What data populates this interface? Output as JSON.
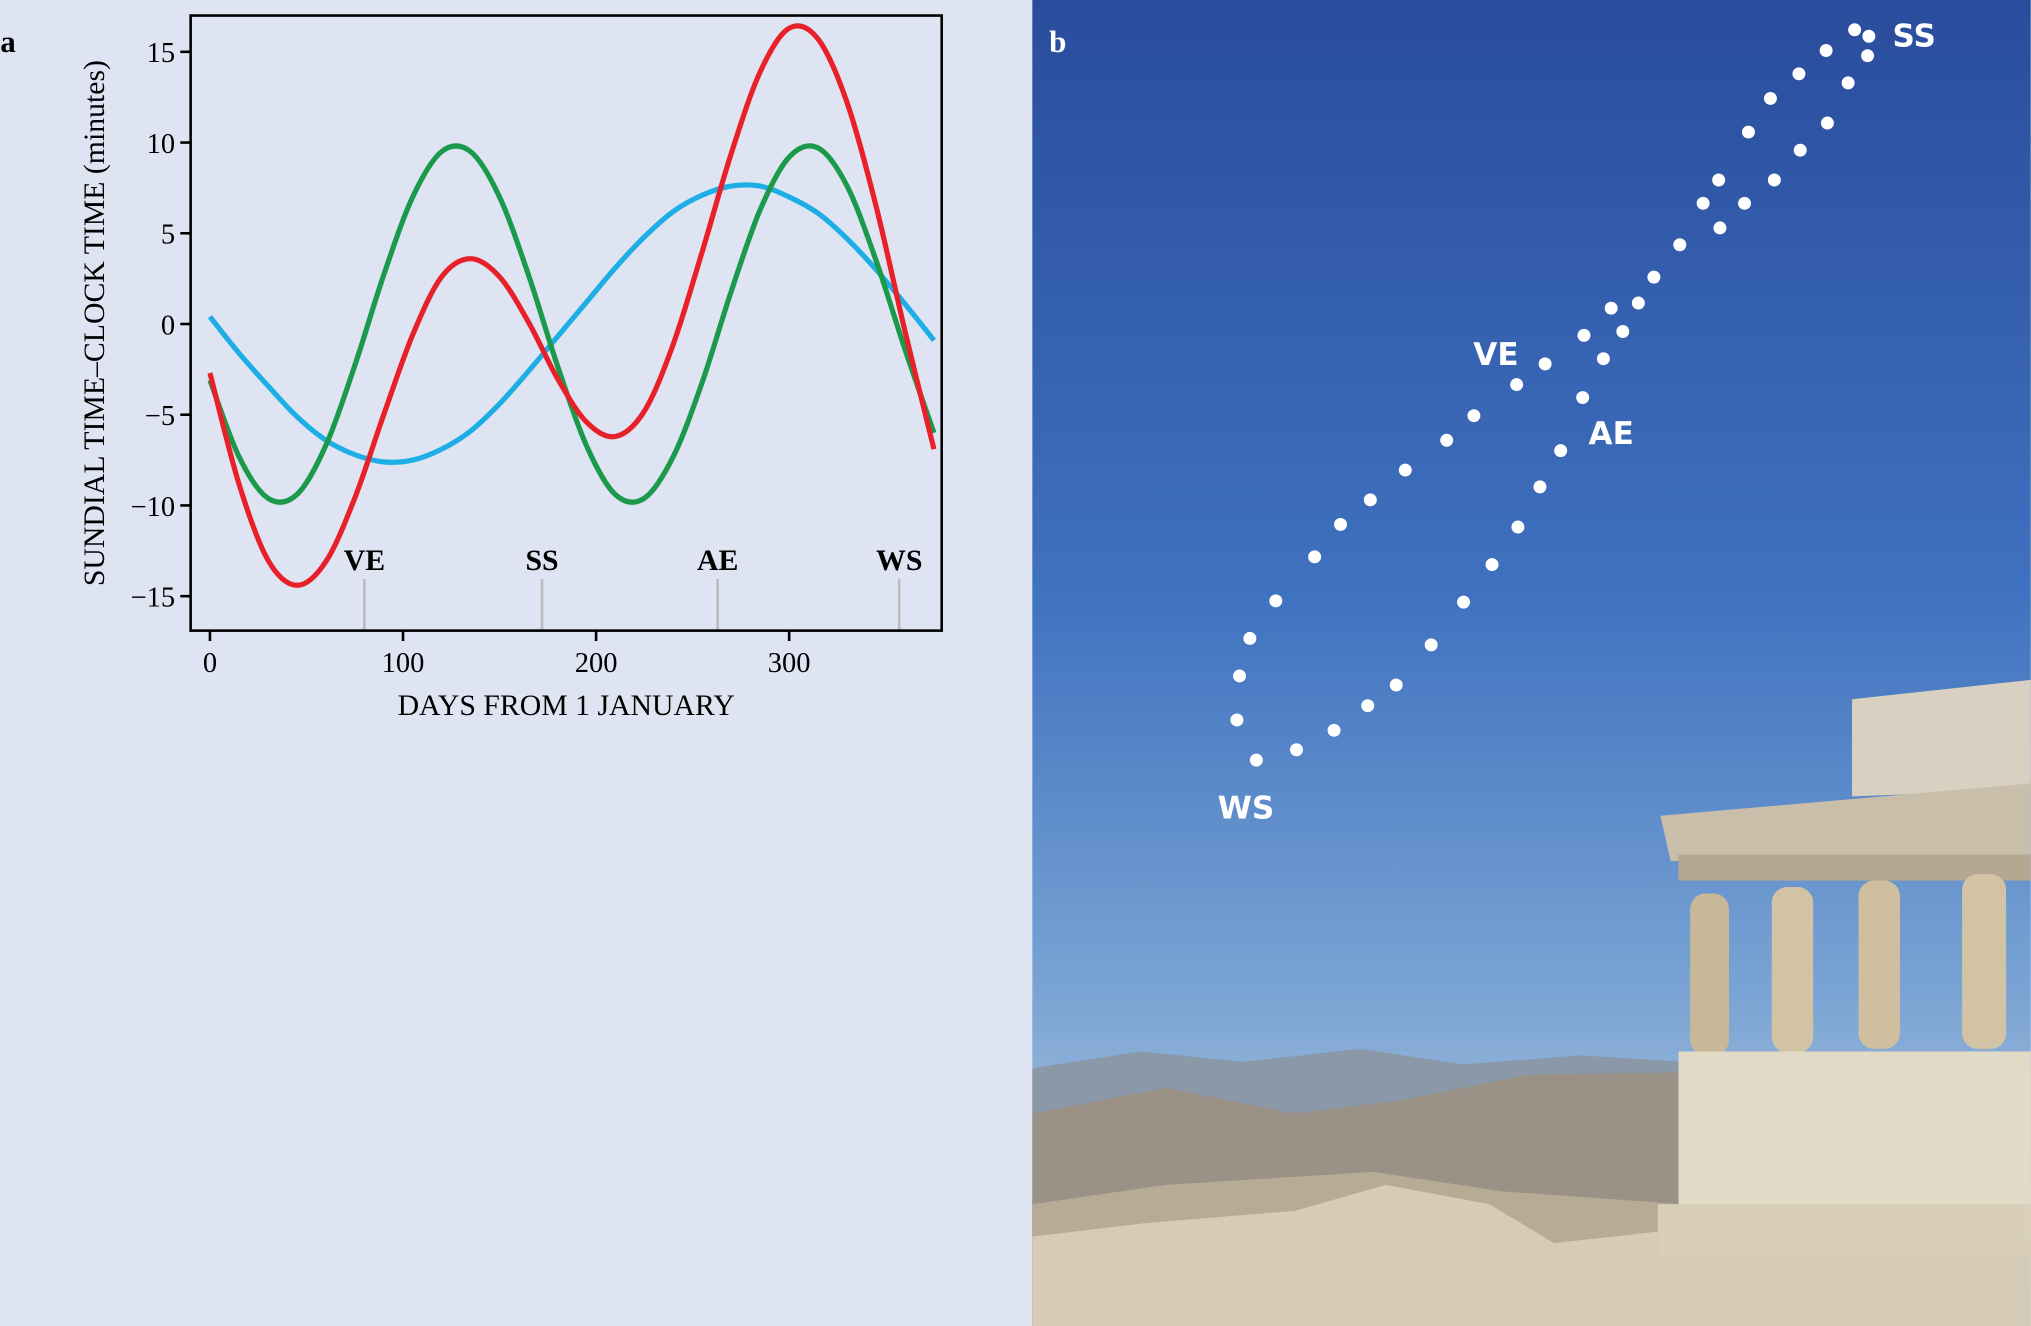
{
  "chart_data": {
    "type": "line",
    "panel_label": "a",
    "xlabel": "DAYS FROM 1 JANUARY",
    "ylabel": "SUNDIAL TIME–CLOCK TIME (minutes)",
    "x": [
      0,
      15,
      30,
      45,
      60,
      75,
      90,
      105,
      120,
      135,
      150,
      165,
      180,
      195,
      210,
      225,
      240,
      255,
      270,
      285,
      300,
      315,
      330,
      345,
      360,
      375
    ],
    "series": [
      {
        "color": "#e8202a",
        "values": [
          -2.7,
          -8.8,
          -13.0,
          -14.4,
          -13.1,
          -9.6,
          -5.0,
          -0.6,
          2.6,
          3.6,
          2.6,
          0.1,
          -3.0,
          -5.4,
          -6.2,
          -4.8,
          -1.1,
          4.0,
          9.4,
          13.9,
          16.3,
          15.7,
          12.2,
          6.5,
          -0.4,
          -6.9
        ]
      },
      {
        "color": "#1a9a4a",
        "values": [
          -3.1,
          -7.3,
          -9.6,
          -9.4,
          -6.7,
          -2.3,
          2.7,
          7.0,
          9.5,
          9.5,
          7.0,
          2.7,
          -2.3,
          -6.7,
          -9.4,
          -9.6,
          -7.3,
          -3.2,
          1.8,
          6.3,
          9.2,
          9.7,
          7.6,
          3.5,
          -1.4,
          -6.0
        ]
      },
      {
        "color": "#1eaee6",
        "values": [
          0.4,
          -1.6,
          -3.4,
          -5.1,
          -6.4,
          -7.2,
          -7.6,
          -7.5,
          -6.9,
          -5.9,
          -4.4,
          -2.6,
          -0.7,
          1.2,
          3.1,
          4.8,
          6.2,
          7.1,
          7.6,
          7.6,
          7.0,
          6.1,
          4.7,
          3.0,
          1.1,
          -0.9
        ]
      }
    ],
    "xlim": [
      -10,
      379
    ],
    "ylim": [
      -16.9,
      17
    ],
    "xticks": [
      0,
      100,
      200,
      300
    ],
    "yticks": [
      {
        "value": -15,
        "label": "−15"
      },
      {
        "value": -10,
        "label": "−10"
      },
      {
        "value": -5,
        "label": "−5"
      },
      0,
      5,
      10,
      15
    ],
    "season_markers": [
      {
        "label": "VE",
        "x": 80
      },
      {
        "label": "SS",
        "x": 172
      },
      {
        "label": "AE",
        "x": 263
      },
      {
        "label": "WS",
        "x": 357
      }
    ]
  },
  "photo": {
    "panel_label": "b",
    "labels": [
      "SS",
      "VE",
      "AE",
      "WS"
    ]
  }
}
